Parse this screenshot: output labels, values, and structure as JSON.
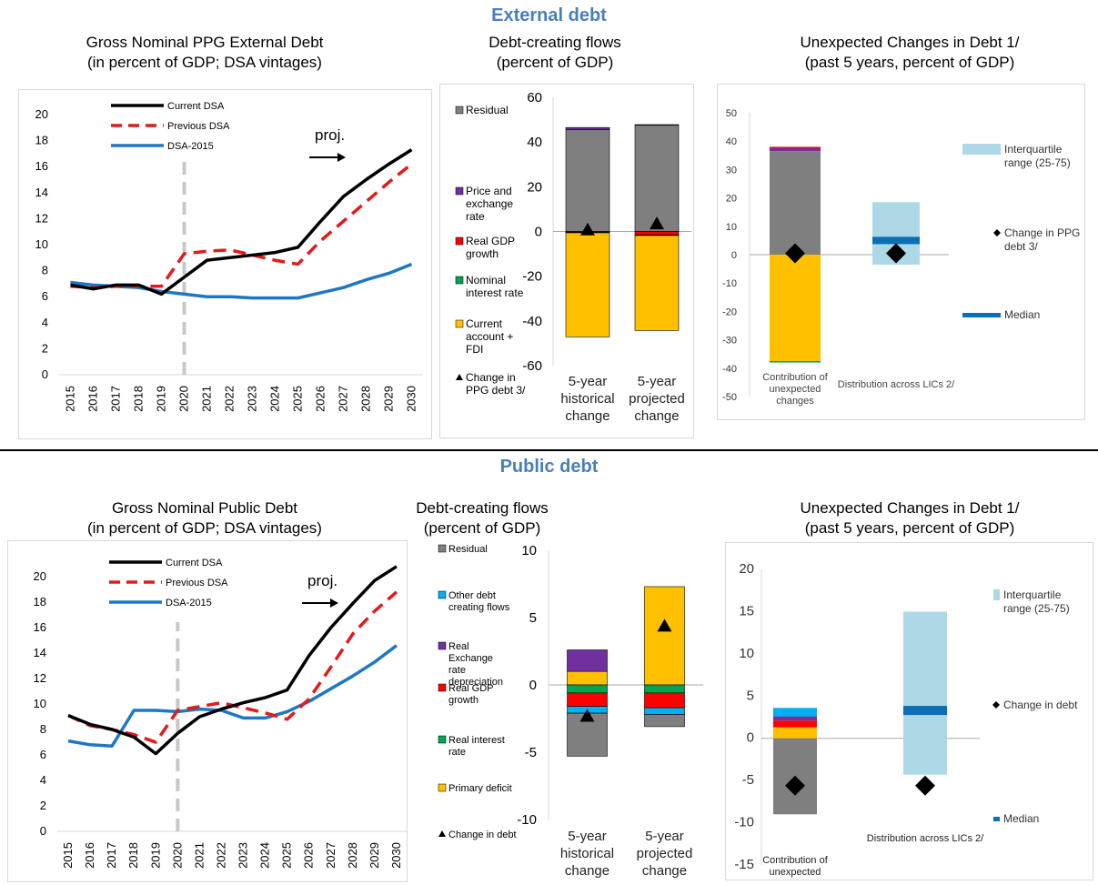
{
  "sections": {
    "external_title": "External debt",
    "public_title": "Public debt"
  },
  "titles": {
    "ext_line_1": "Gross Nominal PPG External Debt",
    "ext_line_2": "(in percent of GDP; DSA vintages)",
    "ext_flows_1": "Debt-creating flows",
    "ext_flows_2": "(percent of GDP)",
    "ext_unexp_1": "Unexpected Changes in Debt 1/",
    "ext_unexp_2": "(past 5 years, percent of GDP)",
    "pub_line_1": "Gross Nominal Public Debt",
    "pub_line_2": "(in percent of GDP; DSA vintages)",
    "pub_flows_1": "Debt-creating flows",
    "pub_flows_2": "(percent of GDP)",
    "pub_unexp_1": "Unexpected Changes in Debt 1/",
    "pub_unexp_2": "(past 5 years, percent of GDP)"
  },
  "colors": {
    "current": "#000000",
    "previous": "#e31a1c",
    "dsa2015": "#1f77c4",
    "residual": "#7f7f7f",
    "price_fx": "#7030a0",
    "real_gdp": "#ff0000",
    "interest": "#00a550",
    "current_account": "#ffc000",
    "other_flows": "#00b0f0",
    "iqr": "#add8e6",
    "median": "#0b6fb8",
    "accent": "#4a7ebb"
  },
  "chart_data": [
    {
      "id": "ext_line",
      "type": "line",
      "x": [
        "2015",
        "2016",
        "2017",
        "2018",
        "2019",
        "2020",
        "2021",
        "2022",
        "2023",
        "2024",
        "2025",
        "2026",
        "2027",
        "2028",
        "2029",
        "2030"
      ],
      "ylim": [
        0,
        20
      ],
      "yticks": [
        0,
        2,
        4,
        6,
        8,
        10,
        12,
        14,
        16,
        18,
        20
      ],
      "projection_label": "proj.",
      "series": [
        {
          "name": "Current DSA",
          "key": "current",
          "dash": false,
          "values": [
            6.9,
            6.6,
            6.9,
            6.9,
            6.2,
            7.5,
            8.8,
            9.0,
            9.2,
            9.4,
            9.8,
            11.8,
            13.7,
            15.0,
            16.2,
            17.3
          ]
        },
        {
          "name": "Previous DSA",
          "key": "previous",
          "dash": true,
          "values": [
            6.8,
            6.7,
            6.8,
            6.8,
            6.8,
            9.3,
            9.5,
            9.6,
            9.2,
            8.8,
            8.5,
            10.3,
            11.8,
            13.3,
            14.8,
            16.2
          ]
        },
        {
          "name": "DSA-2015",
          "key": "dsa2015",
          "dash": false,
          "values": [
            7.1,
            6.9,
            6.8,
            6.7,
            6.4,
            6.2,
            6.0,
            6.0,
            5.9,
            5.9,
            5.9,
            6.3,
            6.7,
            7.3,
            7.8,
            8.5
          ]
        }
      ]
    },
    {
      "id": "ext_flows",
      "type": "bar",
      "ylim": [
        -60,
        60
      ],
      "yticks": [
        -60,
        -40,
        -20,
        0,
        20,
        40,
        60
      ],
      "categories": [
        [
          "5-year",
          "historical",
          "change"
        ],
        [
          "5-year",
          "projected",
          "change"
        ]
      ],
      "legend": [
        {
          "key": "residual",
          "label": [
            "Residual"
          ]
        },
        {
          "key": "price_fx",
          "label": [
            "Price and",
            "exchange",
            "rate"
          ]
        },
        {
          "key": "real_gdp",
          "label": [
            "Real GDP",
            "growth"
          ]
        },
        {
          "key": "interest",
          "label": [
            "Nominal",
            "interest rate"
          ]
        },
        {
          "key": "current_account",
          "label": [
            "Current",
            "account +",
            "FDI"
          ]
        },
        {
          "key": "marker",
          "label": [
            "Change in",
            "PPG debt 3/"
          ]
        }
      ],
      "series": [
        {
          "key": "residual",
          "values": [
            45.5,
            47.5
          ]
        },
        {
          "key": "price_fx",
          "values": [
            1.0,
            0.3
          ]
        },
        {
          "key": "real_gdp",
          "values": [
            -0.3,
            -1.5
          ]
        },
        {
          "key": "interest",
          "values": [
            -0.3,
            -0.3
          ]
        },
        {
          "key": "current_account",
          "values": [
            -46.5,
            -42.5
          ]
        }
      ],
      "markers": [
        0.3,
        3.0
      ]
    },
    {
      "id": "ext_unexp",
      "type": "bar",
      "ylim": [
        -50,
        50
      ],
      "yticks": [
        -50,
        -40,
        -30,
        -20,
        -10,
        0,
        10,
        20,
        30,
        40,
        50
      ],
      "categories": [
        [
          "Contribution of",
          "unexpected",
          "changes"
        ],
        [
          "Distribution across LICs 2/"
        ]
      ],
      "legend": [
        {
          "key": "iqr",
          "label": [
            "Interquartile",
            "range (25-75)"
          ]
        },
        {
          "key": "marker",
          "label": [
            "Change in PPG",
            "debt 3/"
          ]
        },
        {
          "key": "median",
          "label": [
            "Median"
          ]
        }
      ],
      "contribution": [
        {
          "key": "residual",
          "value": 36.5
        },
        {
          "key": "price_fx",
          "value": 1.0
        },
        {
          "key": "real_gdp",
          "value": 0.5
        },
        {
          "key": "current_account",
          "value": -37.5
        },
        {
          "key": "interest",
          "value": -0.5
        }
      ],
      "iqr": [
        -3.5,
        18.5
      ],
      "median": 5.0,
      "markers": [
        0.5,
        0.5
      ]
    },
    {
      "id": "pub_line",
      "type": "line",
      "x": [
        "2015",
        "2016",
        "2017",
        "2018",
        "2019",
        "2020",
        "2021",
        "2022",
        "2023",
        "2024",
        "2025",
        "2026",
        "2027",
        "2028",
        "2029",
        "2030"
      ],
      "ylim": [
        0,
        20
      ],
      "yticks": [
        0,
        2,
        4,
        6,
        8,
        10,
        12,
        14,
        16,
        18,
        20
      ],
      "projection_label": "proj.",
      "series": [
        {
          "name": "Current DSA",
          "key": "current",
          "dash": false,
          "values": [
            9.1,
            8.4,
            8.0,
            7.4,
            6.1,
            7.7,
            9.0,
            9.6,
            10.1,
            10.5,
            11.1,
            13.8,
            16.0,
            17.9,
            19.7,
            20.8
          ]
        },
        {
          "name": "Previous DSA",
          "key": "previous",
          "dash": true,
          "values": [
            9.1,
            8.3,
            8.0,
            7.6,
            7.0,
            9.5,
            9.8,
            10.1,
            9.7,
            9.3,
            8.8,
            10.4,
            12.9,
            15.5,
            17.3,
            18.8
          ]
        },
        {
          "name": "DSA-2015",
          "key": "dsa2015",
          "dash": false,
          "values": [
            7.1,
            6.8,
            6.7,
            9.5,
            9.5,
            9.4,
            9.6,
            9.5,
            8.9,
            8.9,
            9.4,
            10.2,
            11.2,
            12.2,
            13.3,
            14.6
          ]
        }
      ]
    },
    {
      "id": "pub_flows",
      "type": "bar",
      "ylim": [
        -10,
        10
      ],
      "yticks": [
        -10,
        -5,
        0,
        5,
        10
      ],
      "categories": [
        [
          "5-year",
          "historical",
          "change"
        ],
        [
          "5-year",
          "projected",
          "change"
        ]
      ],
      "legend": [
        {
          "key": "residual",
          "label": [
            "Residual"
          ]
        },
        {
          "key": "other_flows",
          "label": [
            "Other debt",
            "creating flows"
          ]
        },
        {
          "key": "price_fx",
          "label": [
            "Real",
            "Exchange",
            "rate",
            "depreciation"
          ]
        },
        {
          "key": "real_gdp",
          "label": [
            "Real GDP",
            "growth"
          ]
        },
        {
          "key": "interest",
          "label": [
            "Real interest",
            "rate"
          ]
        },
        {
          "key": "current_account",
          "label": [
            "Primary deficit"
          ]
        },
        {
          "key": "marker",
          "label": [
            "Change in debt"
          ]
        }
      ],
      "series": [
        {
          "key": "current_account",
          "values": [
            1.0,
            7.3
          ]
        },
        {
          "key": "price_fx",
          "values": [
            1.6,
            0.0
          ]
        },
        {
          "key": "interest",
          "values": [
            -0.6,
            -0.6
          ]
        },
        {
          "key": "real_gdp",
          "values": [
            -1.0,
            -1.1
          ]
        },
        {
          "key": "other_flows",
          "values": [
            -0.5,
            -0.5
          ]
        },
        {
          "key": "residual",
          "values": [
            -3.2,
            -0.9
          ]
        }
      ],
      "markers": [
        -2.4,
        4.3
      ]
    },
    {
      "id": "pub_unexp",
      "type": "bar",
      "ylim": [
        -15,
        20
      ],
      "yticks": [
        -15,
        -10,
        -5,
        0,
        5,
        10,
        15,
        20
      ],
      "categories": [
        [
          "Contribution of",
          "unexpected"
        ],
        [
          "Distribution across LICs 2/"
        ]
      ],
      "legend": [
        {
          "key": "iqr",
          "label": [
            "Interquartile",
            "range (25-75)"
          ]
        },
        {
          "key": "marker",
          "label": [
            "Change in debt"
          ]
        },
        {
          "key": "median",
          "label": [
            "Median"
          ]
        }
      ],
      "contribution": [
        {
          "key": "current_account",
          "value": 1.3
        },
        {
          "key": "real_gdp",
          "value": 0.8
        },
        {
          "key": "price_fx",
          "value": 0.5
        },
        {
          "key": "other_flows",
          "value": 1.0
        },
        {
          "key": "residual",
          "value": -9.0
        }
      ],
      "iqr": [
        -4.3,
        15.0
      ],
      "median": 3.3,
      "markers": [
        -5.6,
        -5.6
      ]
    }
  ]
}
